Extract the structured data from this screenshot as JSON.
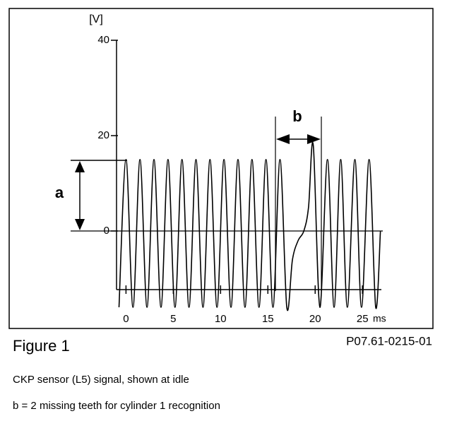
{
  "chart_data": {
    "type": "line",
    "y_unit": "[V]",
    "x_unit": "ms",
    "annotations": [
      "a",
      "b"
    ],
    "figure_label": "Figure 1",
    "figure_code": "P07.61-0215-01",
    "caption": [
      "CKP sensor (L5) signal, shown at idle",
      "b = 2 missing teeth for cylinder 1 recognition"
    ],
    "xlim": [
      -1,
      27
    ],
    "xticks": [
      0,
      5,
      10,
      15,
      20,
      25
    ],
    "ylim": [
      -12,
      40
    ],
    "yticks": [
      0,
      20,
      40
    ],
    "color": "#000000",
    "x": [
      -0.74,
      0,
      0.74,
      1.48,
      2.22,
      2.96,
      3.7,
      4.44,
      5.18,
      5.92,
      6.66,
      7.4,
      8.14,
      8.88,
      9.62,
      10.36,
      11.1,
      11.84,
      12.58,
      13.32,
      14.06,
      14.8,
      15.54,
      16.28,
      17.0,
      17.6,
      18.2,
      18.8,
      19.3,
      19.8,
      20.5,
      21.3,
      22.0,
      22.7,
      23.4,
      24.2,
      24.9,
      25.7,
      26.4,
      26.9
    ],
    "values": [
      -16,
      15,
      -16,
      15,
      -16,
      15,
      -16,
      15,
      -16,
      15,
      -16,
      15,
      -16,
      15,
      -16,
      15,
      -16,
      15,
      -16,
      15,
      -16,
      15,
      -16,
      15,
      -16,
      -6,
      -2,
      0,
      5,
      18,
      -16,
      15,
      -16,
      15,
      -16,
      15,
      -16,
      15,
      -16,
      0
    ]
  }
}
